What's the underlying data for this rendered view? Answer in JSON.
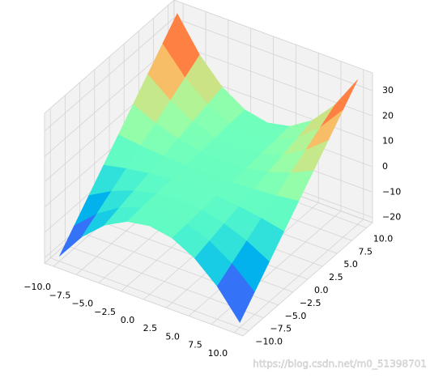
{
  "chart_data": {
    "type": "surface",
    "x": [
      -10,
      -7.5,
      -5,
      -2.5,
      0,
      2.5,
      5,
      7.5,
      10
    ],
    "y": [
      -10,
      -7.5,
      -5,
      -2.5,
      0,
      2.5,
      5,
      7.5,
      10
    ],
    "z": [
      [
        -20,
        -9.06,
        -1.25,
        3.44,
        5,
        3.44,
        -1.25,
        -9.06,
        -20
      ],
      [
        -13.13,
        -5.2,
        0.47,
        3.87,
        5,
        3.87,
        0.47,
        -5.2,
        -13.13
      ],
      [
        -6.25,
        -1.33,
        2.19,
        4.3,
        5,
        4.3,
        2.19,
        -1.33,
        -6.25
      ],
      [
        0.63,
        2.54,
        3.91,
        4.73,
        5,
        4.73,
        3.91,
        2.54,
        0.63
      ],
      [
        7.5,
        6.41,
        5.63,
        5.16,
        5,
        5.16,
        5.63,
        6.41,
        7.5
      ],
      [
        14.38,
        10.27,
        7.34,
        5.59,
        5,
        5.59,
        7.34,
        10.27,
        14.38
      ],
      [
        21.25,
        14.14,
        9.06,
        6.02,
        5,
        6.02,
        9.06,
        14.14,
        21.25
      ],
      [
        28.13,
        18.01,
        10.78,
        6.45,
        5,
        6.45,
        10.78,
        18.01,
        28.13
      ],
      [
        35,
        21.88,
        12.5,
        6.88,
        5,
        6.88,
        12.5,
        21.88,
        35
      ]
    ],
    "xlim": [
      -11,
      11
    ],
    "ylim": [
      -11,
      11
    ],
    "zlim": [
      -22,
      37
    ],
    "xticks": [
      {
        "value": -10,
        "label": "−10.0"
      },
      {
        "value": -7.5,
        "label": "−7.5"
      },
      {
        "value": -5,
        "label": "−5.0"
      },
      {
        "value": -2.5,
        "label": "−2.5"
      },
      {
        "value": 0,
        "label": "0.0"
      },
      2.5,
      {
        "value": 5,
        "label": "5.0"
      },
      7.5,
      {
        "value": 10,
        "label": "10.0"
      }
    ],
    "yticks": [
      {
        "value": -10,
        "label": "−10.0"
      },
      {
        "value": -7.5,
        "label": "−7.5"
      },
      {
        "value": -5,
        "label": "−5.0"
      },
      {
        "value": -2.5,
        "label": "−2.5"
      },
      {
        "value": 0,
        "label": "0.0"
      },
      2.5,
      {
        "value": 5,
        "label": "5.0"
      },
      7.5,
      {
        "value": 10,
        "label": "10.0"
      }
    ],
    "zticks": [
      {
        "value": -20,
        "label": "−20"
      },
      {
        "value": -10,
        "label": "−10"
      },
      0,
      10,
      20,
      30
    ],
    "colormap": "rainbow",
    "grid": true
  },
  "watermark": "https://blog.csdn.net/m0_51398701"
}
